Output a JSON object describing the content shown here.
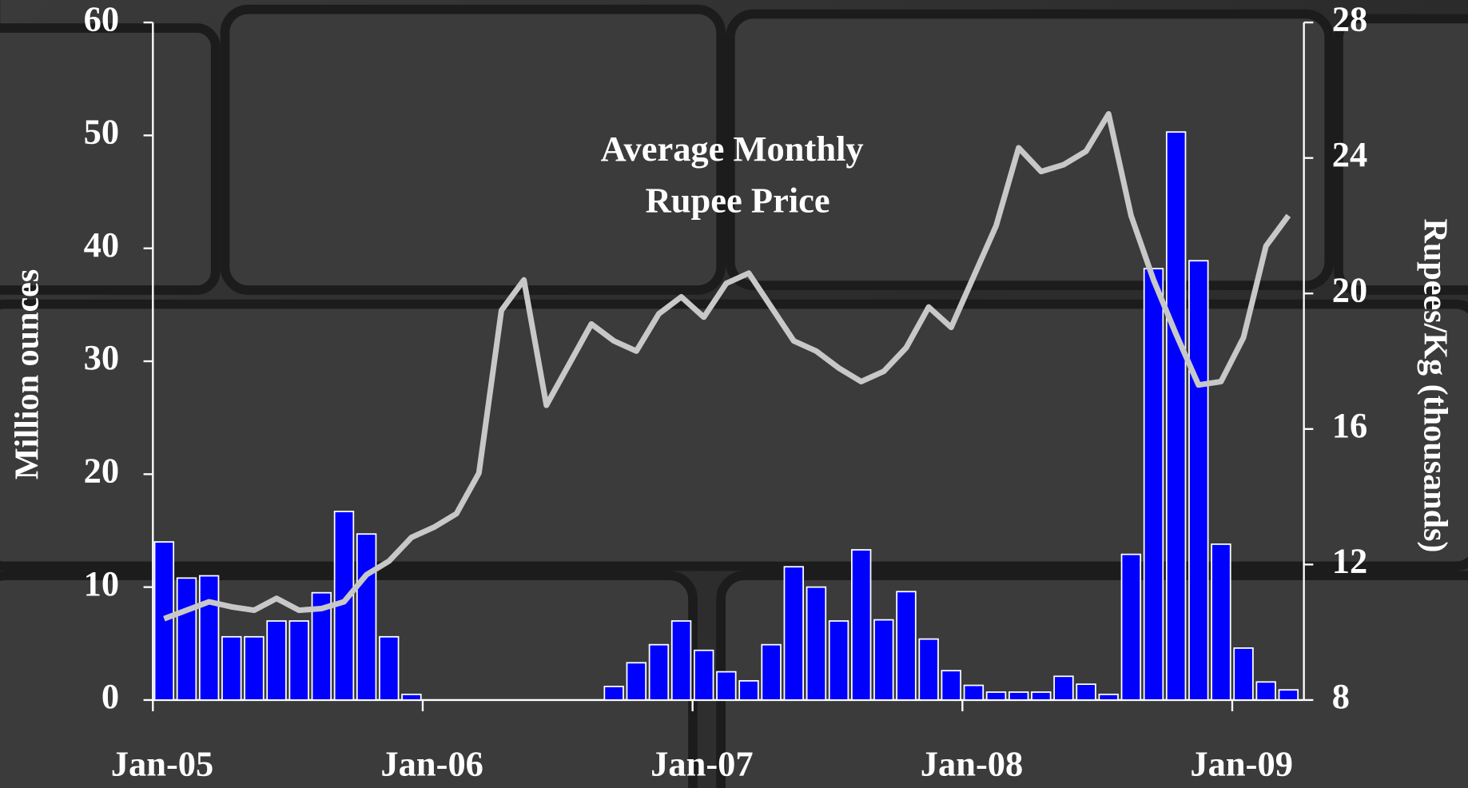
{
  "chart_data": {
    "type": "bar-line",
    "annotation_lines": [
      "Average Monthly",
      "Rupee Price"
    ],
    "ylabel": "Million ounces",
    "y2label": "Rupees/Kg (thousands)",
    "categories": [
      "Jan-05",
      null,
      null,
      null,
      null,
      null,
      null,
      null,
      null,
      null,
      null,
      null,
      "Jan-06",
      null,
      null,
      null,
      null,
      null,
      null,
      null,
      null,
      null,
      null,
      null,
      "Jan-07",
      null,
      null,
      null,
      null,
      null,
      null,
      null,
      null,
      null,
      null,
      null,
      "Jan-08",
      null,
      null,
      null,
      null,
      null,
      null,
      null,
      null,
      null,
      null,
      null,
      "Jan-09",
      null,
      null
    ],
    "series": [
      {
        "type": "bar",
        "color": "#0000ff",
        "values": [
          14,
          10.8,
          11,
          5.6,
          5.6,
          7,
          7,
          9.5,
          16.7,
          14.7,
          5.6,
          0.5,
          0,
          0,
          0,
          0,
          0,
          0,
          0,
          0,
          1.2,
          3.3,
          4.9,
          7,
          4.4,
          2.5,
          1.7,
          4.9,
          11.8,
          10,
          7,
          13.3,
          7.1,
          9.6,
          5.4,
          2.6,
          1.3,
          0.7,
          0.7,
          0.7,
          2.1,
          1.4,
          0.5,
          12.9,
          38.2,
          50.3,
          38.9,
          13.8,
          4.6,
          1.6,
          0.9
        ]
      },
      {
        "type": "line",
        "color": "#c8c8c8",
        "axis": "y2",
        "values": [
          10.4,
          10.65,
          10.9,
          10.75,
          10.65,
          11,
          10.65,
          10.7,
          10.9,
          11.7,
          12.1,
          12.8,
          13.1,
          13.5,
          14.7,
          19.5,
          20.4,
          16.7,
          17.9,
          19.1,
          18.6,
          18.3,
          19.4,
          19.9,
          19.3,
          20.3,
          20.6,
          19.6,
          18.6,
          18.3,
          17.8,
          17.4,
          17.7,
          18.4,
          19.6,
          19,
          20.5,
          22,
          24.3,
          23.6,
          23.8,
          24.2,
          25.3,
          22.3,
          20.4,
          18.8,
          17.3,
          17.4,
          18.7,
          21.4,
          22.3
        ]
      }
    ],
    "ylim": [
      0,
      60
    ],
    "yticks": [
      0,
      10,
      20,
      30,
      40,
      50,
      60
    ],
    "y2lim": [
      8,
      28
    ],
    "y2ticks": [
      8,
      12,
      16,
      20,
      24,
      28
    ]
  }
}
